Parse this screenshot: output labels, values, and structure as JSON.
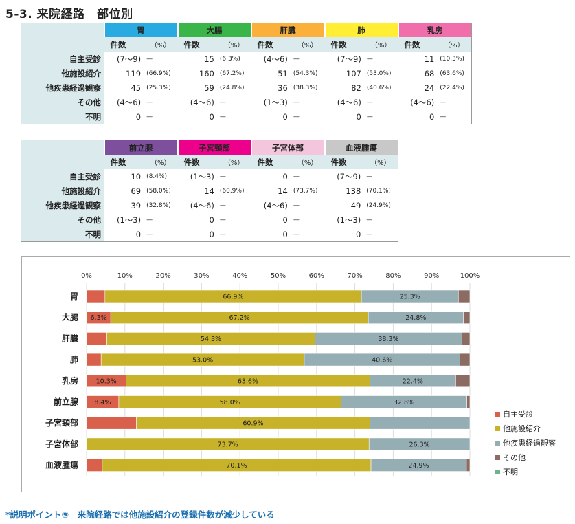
{
  "page": {
    "title": "5-3. 来院経路　部位別",
    "footer_note": "*説明ポイント⑨　来院経路では他施設紹介の登録件数が減少している"
  },
  "colors": {
    "grp_stomach": "#29abe2",
    "grp_colon": "#39b54a",
    "grp_liver": "#fbb03b",
    "grp_lung": "#ffee33",
    "grp_breast": "#f06eaa",
    "grp_prostate": "#7d4f9d",
    "grp_cervix": "#ec008c",
    "grp_uterus": "#f4c6dd",
    "grp_blood": "#c8c8c8",
    "row_band": "#dbeaec",
    "self": "#d9604a",
    "referral": "#c8b22a",
    "followup": "#95aeb4",
    "other": "#8b6b62",
    "unknown": "#6bb588"
  },
  "tables": [
    {
      "columns": [
        "胃",
        "大腸",
        "肝臓",
        "肺",
        "乳房"
      ],
      "col_colors": [
        "grp_stomach",
        "grp_colon",
        "grp_liver",
        "grp_lung",
        "grp_breast"
      ],
      "subheaders": {
        "count": "件数",
        "pct": "（%）"
      },
      "rows": [
        {
          "label": "自主受診",
          "cells": [
            [
              "(7〜9)",
              "—"
            ],
            [
              "15",
              "(6.3%)"
            ],
            [
              "(4〜6)",
              "—"
            ],
            [
              "(7〜9)",
              "—"
            ],
            [
              "11",
              "(10.3%)"
            ]
          ]
        },
        {
          "label": "他施設紹介",
          "cells": [
            [
              "119",
              "(66.9%)"
            ],
            [
              "160",
              "(67.2%)"
            ],
            [
              "51",
              "(54.3%)"
            ],
            [
              "107",
              "(53.0%)"
            ],
            [
              "68",
              "(63.6%)"
            ]
          ]
        },
        {
          "label": "他疾患経過観察",
          "cells": [
            [
              "45",
              "(25.3%)"
            ],
            [
              "59",
              "(24.8%)"
            ],
            [
              "36",
              "(38.3%)"
            ],
            [
              "82",
              "(40.6%)"
            ],
            [
              "24",
              "(22.4%)"
            ]
          ]
        },
        {
          "label": "その他",
          "cells": [
            [
              "(4〜6)",
              "—"
            ],
            [
              "(4〜6)",
              "—"
            ],
            [
              "(1〜3)",
              "—"
            ],
            [
              "(4〜6)",
              "—"
            ],
            [
              "(4〜6)",
              "—"
            ]
          ]
        },
        {
          "label": "不明",
          "cells": [
            [
              "0",
              "—"
            ],
            [
              "0",
              "—"
            ],
            [
              "0",
              "—"
            ],
            [
              "0",
              "—"
            ],
            [
              "0",
              "—"
            ]
          ]
        }
      ]
    },
    {
      "columns": [
        "前立腺",
        "子宮頸部",
        "子宮体部",
        "血液腫瘍"
      ],
      "col_colors": [
        "grp_prostate",
        "grp_cervix",
        "grp_uterus",
        "grp_blood"
      ],
      "subheaders": {
        "count": "件数",
        "pct": "（%）"
      },
      "rows": [
        {
          "label": "自主受診",
          "cells": [
            [
              "10",
              "(8.4%)"
            ],
            [
              "(1〜3)",
              "—"
            ],
            [
              "0",
              "—"
            ],
            [
              "(7〜9)",
              "—"
            ]
          ]
        },
        {
          "label": "他施設紹介",
          "cells": [
            [
              "69",
              "(58.0%)"
            ],
            [
              "14",
              "(60.9%)"
            ],
            [
              "14",
              "(73.7%)"
            ],
            [
              "138",
              "(70.1%)"
            ]
          ]
        },
        {
          "label": "他疾患経過観察",
          "cells": [
            [
              "39",
              "(32.8%)"
            ],
            [
              "(4〜6)",
              "—"
            ],
            [
              "(4〜6)",
              "—"
            ],
            [
              "49",
              "(24.9%)"
            ]
          ]
        },
        {
          "label": "その他",
          "cells": [
            [
              "(1〜3)",
              "—"
            ],
            [
              "0",
              "—"
            ],
            [
              "0",
              "—"
            ],
            [
              "(1〜3)",
              "—"
            ]
          ]
        },
        {
          "label": "不明",
          "cells": [
            [
              "0",
              "—"
            ],
            [
              "0",
              "—"
            ],
            [
              "0",
              "—"
            ],
            [
              "0",
              "—"
            ]
          ]
        }
      ]
    }
  ],
  "chart_data": {
    "type": "bar",
    "orientation": "horizontal",
    "stacked": "percent",
    "categories": [
      "胃",
      "大腸",
      "肝臓",
      "肺",
      "乳房",
      "前立腺",
      "子宮頸部",
      "子宮体部",
      "血液腫瘍"
    ],
    "x_ticks": [
      "0%",
      "10%",
      "20%",
      "30%",
      "40%",
      "50%",
      "60%",
      "70%",
      "80%",
      "90%",
      "100%"
    ],
    "xlim": [
      0,
      100
    ],
    "grid": true,
    "legend_position": "right",
    "series": [
      {
        "name": "自主受診",
        "color": "self",
        "values": [
          4.8,
          6.3,
          5.3,
          3.8,
          10.3,
          8.4,
          13.0,
          0,
          4.1
        ],
        "labels": [
          "",
          "6.3%",
          "",
          "",
          "10.3%",
          "8.4%",
          "",
          "",
          ""
        ]
      },
      {
        "name": "他施設紹介",
        "color": "referral",
        "values": [
          66.9,
          67.2,
          54.3,
          53.0,
          63.6,
          58.0,
          60.9,
          73.7,
          70.1
        ],
        "labels": [
          "66.9%",
          "67.2%",
          "54.3%",
          "53.0%",
          "63.6%",
          "58.0%",
          "60.9%",
          "73.7%",
          "70.1%"
        ]
      },
      {
        "name": "他疾患経過観察",
        "color": "followup",
        "values": [
          25.3,
          24.8,
          38.3,
          40.6,
          22.4,
          32.8,
          26.1,
          26.3,
          24.9
        ],
        "labels": [
          "25.3%",
          "24.8%",
          "38.3%",
          "40.6%",
          "22.4%",
          "32.8%",
          "",
          "26.3%",
          "24.9%"
        ]
      },
      {
        "name": "その他",
        "color": "other",
        "values": [
          3.0,
          1.7,
          2.1,
          2.6,
          3.7,
          0.8,
          0,
          0,
          0.9
        ],
        "labels": [
          "",
          "",
          "",
          "",
          "",
          "",
          "",
          "",
          ""
        ]
      },
      {
        "name": "不明",
        "color": "unknown",
        "values": [
          0,
          0,
          0,
          0,
          0,
          0,
          0,
          0,
          0
        ],
        "labels": [
          "",
          "",
          "",
          "",
          "",
          "",
          "",
          "",
          ""
        ]
      }
    ]
  }
}
